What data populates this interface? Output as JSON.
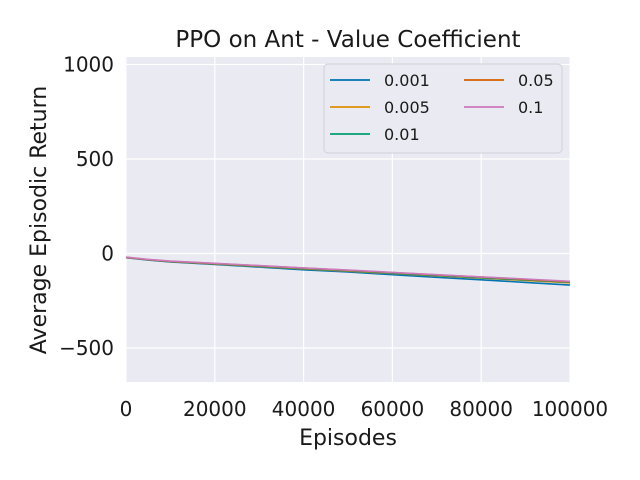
{
  "chart_data": {
    "type": "line",
    "title": "PPO on Ant - Value Coefficient",
    "xlabel": "Episodes",
    "ylabel": "Average Episodic Return",
    "xlim": [
      0,
      100000
    ],
    "ylim": [
      -680,
      1040
    ],
    "xticks": [
      0,
      20000,
      40000,
      60000,
      80000,
      100000
    ],
    "xtick_labels": [
      "0",
      "20000",
      "40000",
      "60000",
      "80000",
      "100000"
    ],
    "yticks": [
      -500,
      0,
      500,
      1000
    ],
    "ytick_labels": [
      "−500",
      "0",
      "500",
      "1000"
    ],
    "grid": true,
    "legend_position": "top-right",
    "legend_columns": 2,
    "series": [
      {
        "name": "0.001",
        "color": "#0173b2",
        "x": [
          0,
          5000,
          10000,
          20000,
          30000,
          40000,
          50000,
          60000,
          70000,
          80000,
          90000,
          100000
        ],
        "y": [
          -22,
          -35,
          -45,
          -58,
          -72,
          -86,
          -98,
          -112,
          -126,
          -139,
          -153,
          -167
        ]
      },
      {
        "name": "0.005",
        "color": "#de8f05",
        "x": [
          0,
          5000,
          10000,
          20000,
          30000,
          40000,
          50000,
          60000,
          70000,
          80000,
          90000,
          100000
        ],
        "y": [
          -21,
          -33,
          -43,
          -55,
          -68,
          -81,
          -93,
          -106,
          -118,
          -130,
          -143,
          -155
        ]
      },
      {
        "name": "0.01",
        "color": "#029e73",
        "x": [
          0,
          5000,
          10000,
          20000,
          30000,
          40000,
          50000,
          60000,
          70000,
          80000,
          90000,
          100000
        ],
        "y": [
          -21,
          -33,
          -42,
          -54,
          -67,
          -79,
          -91,
          -104,
          -116,
          -128,
          -140,
          -152
        ]
      },
      {
        "name": "0.05",
        "color": "#d55e00",
        "x": [
          0,
          5000,
          10000,
          20000,
          30000,
          40000,
          50000,
          60000,
          70000,
          80000,
          90000,
          100000
        ],
        "y": [
          -20,
          -32,
          -41,
          -53,
          -65,
          -77,
          -89,
          -101,
          -113,
          -125,
          -137,
          -149
        ]
      },
      {
        "name": "0.1",
        "color": "#cc78bc",
        "x": [
          0,
          5000,
          10000,
          20000,
          30000,
          40000,
          50000,
          60000,
          70000,
          80000,
          90000,
          100000
        ],
        "y": [
          -19,
          -31,
          -40,
          -52,
          -64,
          -76,
          -88,
          -100,
          -112,
          -124,
          -135,
          -147
        ]
      }
    ]
  }
}
